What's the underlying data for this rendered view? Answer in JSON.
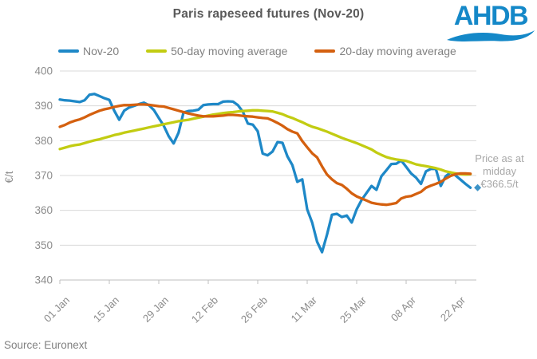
{
  "title": "Paris rapeseed futures (Nov-20)",
  "logo": {
    "text": "AHDB",
    "color": "#1488c8"
  },
  "source": "Source: Euronext",
  "annotation": {
    "line1": "Price as at",
    "line2": "midday",
    "line3": "€366.5/t"
  },
  "colors": {
    "title_text": "#595959",
    "axis_text": "#8c8c8c",
    "legend_text": "#808080",
    "annotation_text": "#a8a8a8",
    "gridline": "#d9d9d9",
    "axis_line": "#bfbfbf",
    "marker": "#3e94c8"
  },
  "chart_data": {
    "type": "line",
    "title": "Paris rapeseed futures (Nov-20)",
    "xlabel": "",
    "ylabel": "€/t",
    "ylim": [
      340,
      400
    ],
    "ytick_step": 10,
    "grid": "horizontal",
    "legend_position": "top",
    "x_ticks": [
      "01 Jan",
      "15 Jan",
      "29 Jan",
      "12 Feb",
      "26 Feb",
      "11 Mar",
      "25 Mar",
      "08 Apr",
      "22 Apr"
    ],
    "x_tick_interval_days": 14,
    "x_step_days": 1.4,
    "end_marker": {
      "series": "Nov-20",
      "value": 366.5,
      "shape": "diamond",
      "label": "€366.5/t"
    },
    "series": [
      {
        "name": "Nov-20",
        "color": "#1e88c7",
        "values": [
          391.8,
          391.6,
          391.5,
          391.3,
          391.1,
          391.6,
          393.2,
          393.4,
          392.8,
          392.2,
          391.7,
          388.6,
          386.0,
          388.6,
          389.5,
          390.0,
          390.5,
          390.9,
          390.2,
          388.8,
          386.5,
          384.3,
          381.3,
          379.2,
          382.3,
          388.1,
          388.5,
          388.6,
          388.9,
          390.2,
          390.4,
          390.5,
          390.5,
          391.2,
          391.3,
          391.2,
          390.2,
          388.3,
          384.9,
          384.6,
          382.7,
          376.3,
          375.8,
          376.9,
          379.6,
          379.4,
          375.5,
          373.0,
          368.2,
          368.9,
          360.3,
          356.5,
          351.0,
          348.0,
          353.0,
          358.7,
          359.0,
          358.1,
          358.5,
          356.5,
          360.3,
          363.0,
          365.0,
          367.0,
          365.9,
          369.8,
          371.5,
          373.3,
          373.4,
          374.3,
          372.5,
          370.6,
          369.4,
          367.6,
          371.2,
          371.9,
          371.9,
          367.0,
          369.8,
          370.9,
          370.0,
          368.8,
          367.6,
          366.5
        ]
      },
      {
        "name": "50-day moving average",
        "color": "#c2cc12",
        "values": [
          377.6,
          378.0,
          378.4,
          378.7,
          378.9,
          379.3,
          379.7,
          380.1,
          380.4,
          380.8,
          381.2,
          381.6,
          381.9,
          382.3,
          382.6,
          382.9,
          383.2,
          383.5,
          383.8,
          384.1,
          384.4,
          384.7,
          385.0,
          385.3,
          385.6,
          385.8,
          386.0,
          386.3,
          386.6,
          386.9,
          387.2,
          387.5,
          387.7,
          387.9,
          388.1,
          388.2,
          388.4,
          388.5,
          388.6,
          388.7,
          388.7,
          388.6,
          388.5,
          388.4,
          388.0,
          387.6,
          387.0,
          386.5,
          385.9,
          385.3,
          384.6,
          384.0,
          383.6,
          383.1,
          382.6,
          382.0,
          381.4,
          380.8,
          380.3,
          379.8,
          379.3,
          378.7,
          378.1,
          377.5,
          376.6,
          375.9,
          375.3,
          374.9,
          374.6,
          374.4,
          374.2,
          373.7,
          373.2,
          372.9,
          372.7,
          372.4,
          372.1,
          371.7,
          371.2,
          370.9,
          370.6,
          370.4,
          370.3,
          370.4
        ]
      },
      {
        "name": "20-day moving average",
        "color": "#d4600f",
        "values": [
          384.0,
          384.5,
          385.2,
          385.7,
          386.1,
          386.7,
          387.4,
          388.0,
          388.6,
          389.0,
          389.3,
          389.7,
          390.0,
          390.2,
          390.2,
          390.3,
          390.4,
          390.4,
          390.3,
          390.1,
          389.9,
          389.8,
          389.4,
          389.0,
          388.6,
          388.2,
          387.8,
          387.5,
          387.2,
          387.0,
          387.0,
          387.0,
          387.1,
          387.2,
          387.4,
          387.4,
          387.3,
          387.1,
          387.0,
          386.9,
          386.7,
          386.5,
          386.4,
          385.8,
          385.1,
          384.3,
          383.3,
          382.6,
          382.1,
          379.9,
          378.1,
          376.4,
          375.2,
          372.6,
          370.3,
          368.9,
          367.8,
          367.3,
          366.2,
          364.9,
          364.0,
          363.4,
          362.8,
          362.2,
          361.9,
          361.7,
          361.6,
          361.8,
          362.1,
          363.4,
          363.9,
          364.1,
          364.7,
          365.3,
          366.5,
          367.1,
          367.6,
          368.2,
          369.1,
          369.9,
          370.4,
          370.6,
          370.6,
          370.5
        ]
      }
    ]
  }
}
